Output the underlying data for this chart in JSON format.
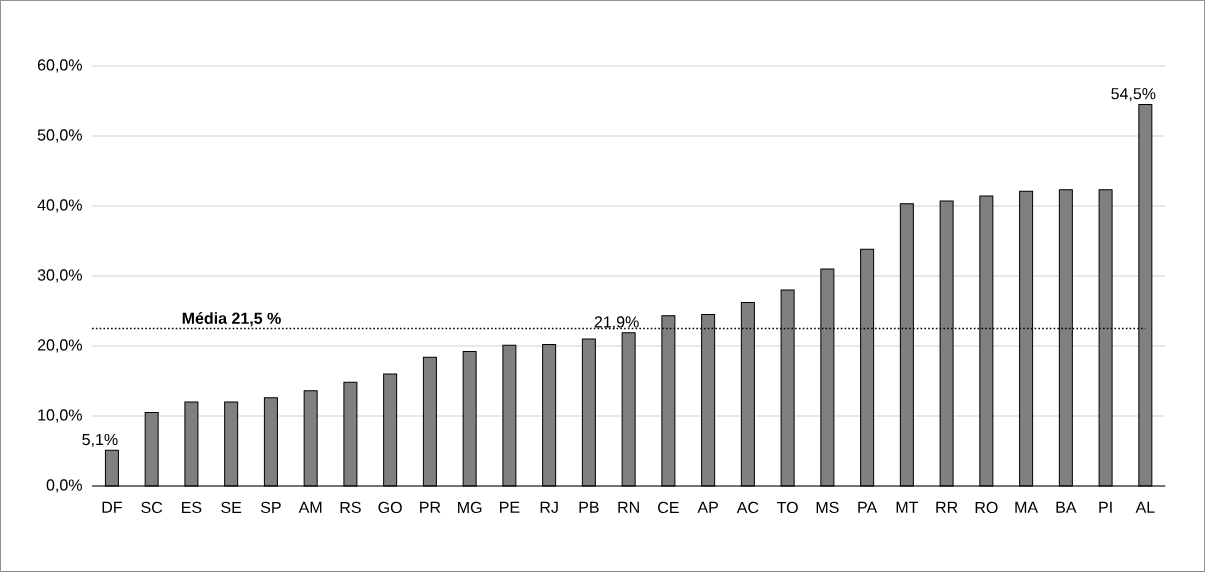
{
  "chart_data": {
    "type": "bar",
    "categories": [
      "DF",
      "SC",
      "ES",
      "SE",
      "SP",
      "AM",
      "RS",
      "GO",
      "PR",
      "MG",
      "PE",
      "RJ",
      "PB",
      "RN",
      "CE",
      "AP",
      "AC",
      "TO",
      "MS",
      "PA",
      "MT",
      "RR",
      "RO",
      "MA",
      "BA",
      "PI",
      "AL"
    ],
    "values": [
      5.1,
      10.5,
      12.0,
      12.0,
      12.6,
      13.6,
      14.8,
      16.0,
      18.4,
      19.2,
      20.1,
      20.2,
      21.0,
      21.9,
      24.3,
      24.5,
      26.2,
      28.0,
      31.0,
      33.8,
      40.3,
      40.7,
      41.4,
      42.1,
      42.3,
      42.3,
      54.5
    ],
    "value_labels": [
      "5,1%",
      null,
      null,
      null,
      null,
      null,
      null,
      null,
      null,
      null,
      null,
      null,
      null,
      "21,9%",
      null,
      null,
      null,
      null,
      null,
      null,
      null,
      null,
      null,
      null,
      null,
      null,
      "54,5%"
    ],
    "color": "#808080",
    "ylim": [
      0,
      60
    ],
    "yticks": [
      {
        "value": 0,
        "label": "0,0%"
      },
      {
        "value": 10,
        "label": "10,0%"
      },
      {
        "value": 20,
        "label": "20,0%"
      },
      {
        "value": 30,
        "label": "30,0%"
      },
      {
        "value": 40,
        "label": "40,0%"
      },
      {
        "value": 50,
        "label": "50,0%"
      },
      {
        "value": 60,
        "label": "60,0%"
      }
    ],
    "grid": "y",
    "ref_lines": [
      {
        "axis": "y",
        "value": 22.5,
        "label": "Média 21,5 %",
        "color": "#000000",
        "line_style": "dotted"
      }
    ]
  }
}
